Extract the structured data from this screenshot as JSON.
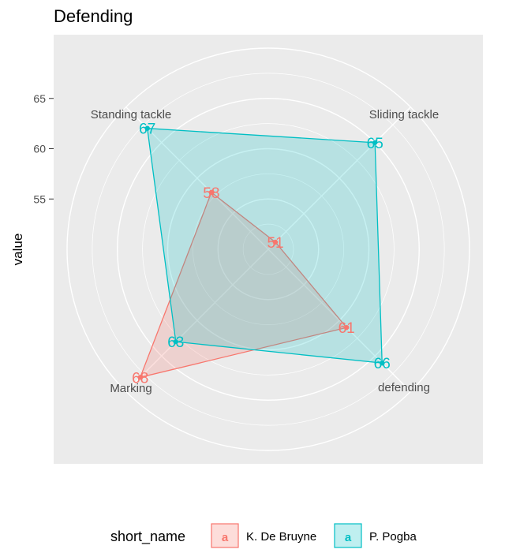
{
  "chart_data": {
    "type": "radar",
    "title": "Defending",
    "ylabel": "value",
    "y_ticks": [
      "55",
      "60",
      "65"
    ],
    "axes": [
      "Standing tackle",
      "Sliding tackle",
      "defending",
      "Marking"
    ],
    "series": [
      {
        "name": "K. De Bruyne",
        "values": [
          58,
          51,
          61,
          68
        ],
        "color": "#F8766D"
      },
      {
        "name": "P. Pogba",
        "values": [
          67,
          65,
          66,
          63
        ],
        "color": "#00BFC4"
      }
    ],
    "legend": {
      "title": "short_name",
      "position": "bottom",
      "key_glyph": "a"
    },
    "grid": true
  }
}
